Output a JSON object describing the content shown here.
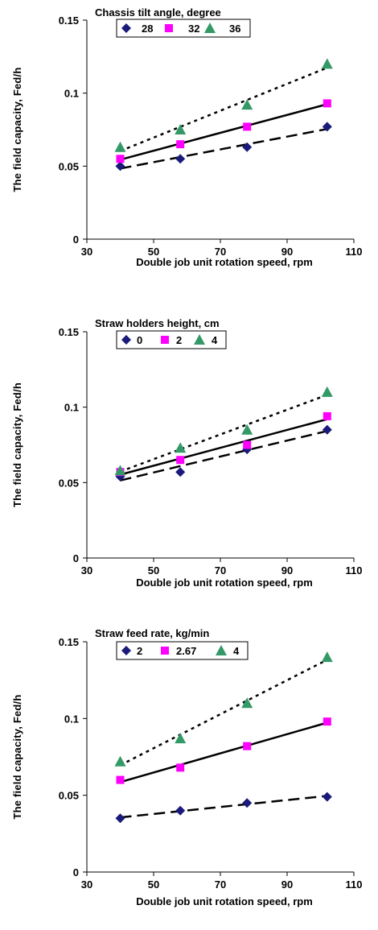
{
  "chart_data": [
    {
      "type": "scatter",
      "title": "Chassis tilt angle, degree",
      "xlabel": "Double job unit rotation speed, rpm",
      "ylabel": "The field capacity, Fed/h",
      "xlim": [
        30,
        110
      ],
      "ylim": [
        0,
        0.15
      ],
      "xticks": [
        "30",
        "50",
        "70",
        "90",
        "110"
      ],
      "yticks": [
        "0",
        "0.05",
        "0.1",
        "0.15"
      ],
      "legend_placement": "top",
      "trendlines": "linear",
      "series": [
        {
          "name": "28",
          "marker": "diamond",
          "color": "#1a1a7a",
          "line": "long-dash",
          "x": [
            40,
            58,
            78,
            102
          ],
          "y": [
            0.05,
            0.055,
            0.063,
            0.077
          ]
        },
        {
          "name": "32",
          "marker": "square",
          "color": "#ff00ff",
          "line": "solid",
          "x": [
            40,
            58,
            78,
            102
          ],
          "y": [
            0.055,
            0.065,
            0.077,
            0.093
          ]
        },
        {
          "name": "36",
          "marker": "triangle",
          "color": "#339966",
          "line": "dotted",
          "x": [
            40,
            58,
            78,
            102
          ],
          "y": [
            0.063,
            0.075,
            0.092,
            0.12
          ]
        }
      ]
    },
    {
      "type": "scatter",
      "title": "Straw holders height, cm",
      "xlabel": "Double job unit rotation speed, rpm",
      "ylabel": "The field capacity, Fed/h",
      "xlim": [
        30,
        110
      ],
      "ylim": [
        0,
        0.15
      ],
      "xticks": [
        "30",
        "50",
        "70",
        "90",
        "110"
      ],
      "yticks": [
        "0",
        "0.05",
        "0.1",
        "0.15"
      ],
      "legend_placement": "top",
      "trendlines": "linear",
      "series": [
        {
          "name": "0",
          "marker": "diamond",
          "color": "#1a1a7a",
          "line": "long-dash",
          "x": [
            40,
            58,
            78,
            102
          ],
          "y": [
            0.054,
            0.057,
            0.072,
            0.085
          ]
        },
        {
          "name": "2",
          "marker": "square",
          "color": "#ff00ff",
          "line": "solid",
          "x": [
            40,
            58,
            78,
            102
          ],
          "y": [
            0.057,
            0.065,
            0.075,
            0.094
          ]
        },
        {
          "name": "4",
          "marker": "triangle",
          "color": "#339966",
          "line": "dotted",
          "x": [
            40,
            58,
            78,
            102
          ],
          "y": [
            0.058,
            0.073,
            0.085,
            0.11
          ]
        }
      ]
    },
    {
      "type": "scatter",
      "title": "Straw feed rate, kg/min",
      "xlabel": "Double job unit rotation speed, rpm",
      "ylabel": "The field capacity, Fed/h",
      "xlim": [
        30,
        110
      ],
      "ylim": [
        0,
        0.15
      ],
      "xticks": [
        "30",
        "50",
        "70",
        "90",
        "110"
      ],
      "yticks": [
        "0",
        "0.05",
        "0.1",
        "0.15"
      ],
      "legend_placement": "top",
      "trendlines": "linear",
      "series": [
        {
          "name": "2",
          "marker": "diamond",
          "color": "#1a1a7a",
          "line": "long-dash",
          "x": [
            40,
            58,
            78,
            102
          ],
          "y": [
            0.035,
            0.04,
            0.045,
            0.049
          ]
        },
        {
          "name": "2.67",
          "marker": "square",
          "color": "#ff00ff",
          "line": "solid",
          "x": [
            40,
            58,
            78,
            102
          ],
          "y": [
            0.06,
            0.068,
            0.082,
            0.098
          ]
        },
        {
          "name": "4",
          "marker": "triangle",
          "color": "#339966",
          "line": "dotted",
          "x": [
            40,
            58,
            78,
            102
          ],
          "y": [
            0.072,
            0.087,
            0.11,
            0.14
          ]
        }
      ]
    }
  ]
}
